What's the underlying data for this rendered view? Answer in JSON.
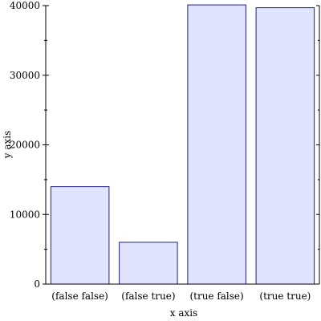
{
  "chart_data": {
    "type": "bar",
    "categories": [
      "(false false)",
      "(false true)",
      "(true false)",
      "(true true)"
    ],
    "values": [
      14000,
      6000,
      40100,
      39700
    ],
    "xlabel": "x axis",
    "ylabel": "y axis",
    "ylim": [
      0,
      40000
    ],
    "yticks": [
      0,
      10000,
      20000,
      30000,
      40000
    ],
    "grid": false,
    "bar_fill": "#e0e4ff",
    "bar_stroke": "#1f1f8f"
  }
}
